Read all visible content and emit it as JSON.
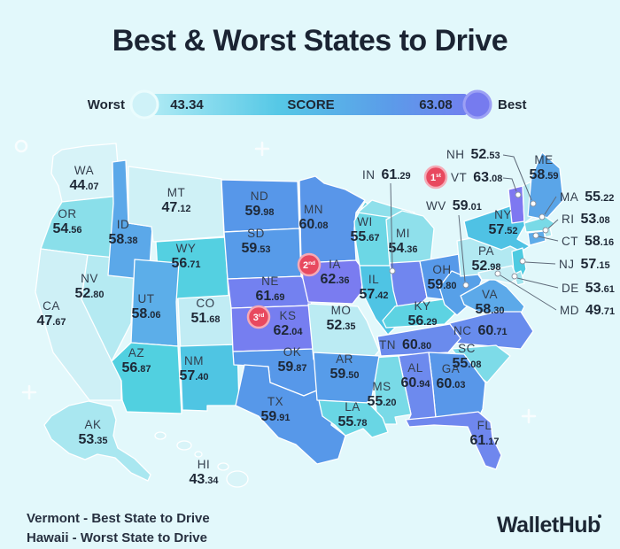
{
  "title": "Best & Worst States to Drive",
  "legend": {
    "worst_label": "Worst",
    "best_label": "Best",
    "score_label": "SCORE",
    "min_score": "43.34",
    "max_score": "63.08"
  },
  "footer": {
    "best_line": "Vermont - Best State to Drive",
    "worst_line": "Hawaii - Worst State to Drive"
  },
  "brand": "WalletHub",
  "colors": {
    "background": "#e2f8fb",
    "text_dark": "#1f2835",
    "state_border": "#ffffff",
    "badge_red": "#e8495f",
    "badge_ring": "#f5aab6",
    "callout_line": "#5f6b7a",
    "legend_gradient": [
      "#aeeaf4",
      "#56c8e6",
      "#5b9ce9",
      "#7180ef"
    ],
    "legend_left_circle": "#cff2f8",
    "legend_right_circle": "#767bef",
    "scale": [
      [
        43.34,
        "#d9f4f8"
      ],
      [
        48,
        "#cdf0f6"
      ],
      [
        52,
        "#c0ecf4"
      ],
      [
        53,
        "#b2e9f2"
      ],
      [
        54,
        "#98e3ec"
      ],
      [
        55,
        "#7fdce8"
      ],
      [
        56,
        "#63d4e3"
      ],
      [
        57,
        "#4ecfe0"
      ],
      [
        57.6,
        "#4fc0e5"
      ],
      [
        58.1,
        "#5dace9"
      ],
      [
        59,
        "#57a0e8"
      ],
      [
        60,
        "#5797e9"
      ],
      [
        60.5,
        "#648fec"
      ],
      [
        61,
        "#6e89ee"
      ],
      [
        61.8,
        "#7480f0"
      ],
      [
        62.4,
        "#7a7cf0"
      ],
      [
        63.08,
        "#7e78f1"
      ]
    ]
  },
  "chart_data": {
    "type": "choropleth",
    "title": "Best & Worst States to Drive",
    "metric": "SCORE",
    "score_range": [
      43.34,
      63.08
    ],
    "best_state": "Vermont",
    "worst_state": "Hawaii",
    "rank_badges": [
      {
        "num": "1",
        "suffix": "st",
        "state": "VT"
      },
      {
        "num": "2",
        "suffix": "nd",
        "state": "IA"
      },
      {
        "num": "3",
        "suffix": "rd",
        "state": "KS"
      }
    ],
    "states": [
      {
        "abbr": "WA",
        "score": "44.07"
      },
      {
        "abbr": "OR",
        "score": "54.56"
      },
      {
        "abbr": "CA",
        "score": "47.67"
      },
      {
        "abbr": "NV",
        "score": "52.80"
      },
      {
        "abbr": "ID",
        "score": "58.38"
      },
      {
        "abbr": "MT",
        "score": "47.12"
      },
      {
        "abbr": "WY",
        "score": "56.71"
      },
      {
        "abbr": "UT",
        "score": "58.06"
      },
      {
        "abbr": "CO",
        "score": "51.68"
      },
      {
        "abbr": "AZ",
        "score": "56.87"
      },
      {
        "abbr": "NM",
        "score": "57.40"
      },
      {
        "abbr": "AK",
        "score": "53.35"
      },
      {
        "abbr": "HI",
        "score": "43.34"
      },
      {
        "abbr": "ND",
        "score": "59.98"
      },
      {
        "abbr": "SD",
        "score": "59.53"
      },
      {
        "abbr": "NE",
        "score": "61.69"
      },
      {
        "abbr": "KS",
        "score": "62.04"
      },
      {
        "abbr": "OK",
        "score": "59.87"
      },
      {
        "abbr": "TX",
        "score": "59.91"
      },
      {
        "abbr": "MN",
        "score": "60.08"
      },
      {
        "abbr": "IA",
        "score": "62.36"
      },
      {
        "abbr": "MO",
        "score": "52.35"
      },
      {
        "abbr": "AR",
        "score": "59.50"
      },
      {
        "abbr": "LA",
        "score": "55.78"
      },
      {
        "abbr": "WI",
        "score": "55.67"
      },
      {
        "abbr": "IL",
        "score": "57.42"
      },
      {
        "abbr": "MI",
        "score": "54.36"
      },
      {
        "abbr": "IN",
        "score": "61.29"
      },
      {
        "abbr": "OH",
        "score": "59.80"
      },
      {
        "abbr": "KY",
        "score": "56.29"
      },
      {
        "abbr": "TN",
        "score": "60.80"
      },
      {
        "abbr": "MS",
        "score": "55.20"
      },
      {
        "abbr": "AL",
        "score": "60.94"
      },
      {
        "abbr": "GA",
        "score": "60.03"
      },
      {
        "abbr": "FL",
        "score": "61.17"
      },
      {
        "abbr": "SC",
        "score": "55.08"
      },
      {
        "abbr": "NC",
        "score": "60.71"
      },
      {
        "abbr": "VA",
        "score": "58.30"
      },
      {
        "abbr": "WV",
        "score": "59.01"
      },
      {
        "abbr": "NY",
        "score": "57.52"
      },
      {
        "abbr": "PA",
        "score": "52.98"
      },
      {
        "abbr": "NJ",
        "score": "57.15"
      },
      {
        "abbr": "DE",
        "score": "53.61"
      },
      {
        "abbr": "MD",
        "score": "49.71"
      },
      {
        "abbr": "CT",
        "score": "58.16"
      },
      {
        "abbr": "RI",
        "score": "53.08"
      },
      {
        "abbr": "MA",
        "score": "55.22"
      },
      {
        "abbr": "VT",
        "score": "63.08"
      },
      {
        "abbr": "NH",
        "score": "52.53"
      },
      {
        "abbr": "ME",
        "score": "58.59"
      }
    ]
  }
}
